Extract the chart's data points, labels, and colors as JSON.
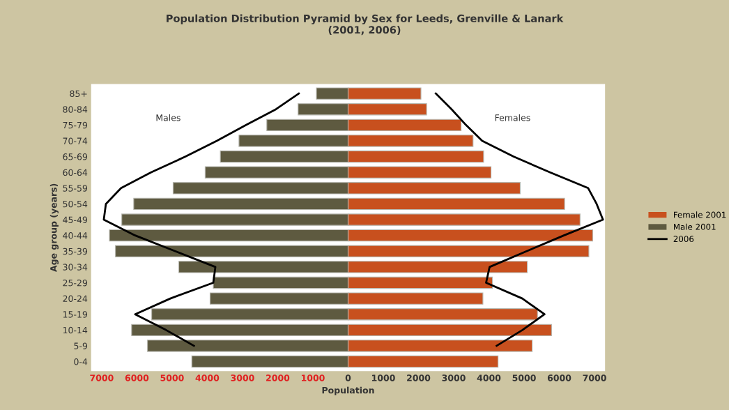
{
  "chart_data": {
    "type": "bar",
    "orientation": "horizontal",
    "stacked": true,
    "title": "Population Distribution Pyramid by Sex for Leeds, Grenville & Lanark\n(2001, 2006)",
    "xlabel": "Population",
    "ylabel": "Age group (years)",
    "categories": [
      "85+",
      "80-84",
      "75-79",
      "70-74",
      "65-69",
      "60-64",
      "55-59",
      "50-54",
      "45-49",
      "40-44",
      "35-39",
      "30-34",
      "25-29",
      "20-24",
      "15-19",
      "10-14",
      "5-9",
      "0-4"
    ],
    "series": [
      {
        "name": "Female 2001",
        "color": "#c8501e",
        "values": [
          2070,
          2230,
          3210,
          3550,
          3850,
          4060,
          4890,
          6150,
          6590,
          6950,
          6840,
          5090,
          4100,
          3830,
          5380,
          5780,
          5230,
          4260
        ]
      },
      {
        "name": "Male 2001",
        "color": "#5e5a40",
        "values": [
          -900,
          -1420,
          -2310,
          -3100,
          -3630,
          -4060,
          -4970,
          -6090,
          -6430,
          -6780,
          -6610,
          -4810,
          -3830,
          -3920,
          -5580,
          -6150,
          -5700,
          -4440
        ]
      },
      {
        "name": "2006",
        "type": "line",
        "color": "#000000",
        "values": [
          2490,
          2940,
          3350,
          3810,
          4700,
          5740,
          6820,
          7060,
          7240,
          6130,
          5070,
          4020,
          3920,
          4950,
          5580,
          4950,
          4220,
          null
        ]
      },
      {
        "type": "line",
        "color": "#000000",
        "values": [
          -1400,
          -2050,
          -2900,
          -3730,
          -4620,
          -5600,
          -6450,
          -6880,
          -6940,
          -6050,
          -4910,
          -3770,
          -3830,
          -5050,
          -6050,
          -5170,
          -4380,
          null
        ]
      }
    ],
    "annotations": [
      "Males",
      "Females"
    ],
    "xlim": [
      -7300,
      7300
    ],
    "xticks": [
      {
        "value": -7000,
        "label": "7000"
      },
      {
        "value": -6000,
        "label": "6000"
      },
      {
        "value": -5000,
        "label": "5000"
      },
      {
        "value": -4000,
        "label": "4000"
      },
      {
        "value": -3000,
        "label": "3000"
      },
      {
        "value": -2000,
        "label": "2000"
      },
      {
        "value": -1000,
        "label": "1000"
      },
      0,
      1000,
      2000,
      3000,
      4000,
      5000,
      6000,
      7000
    ],
    "legend": "right",
    "grid": false
  }
}
